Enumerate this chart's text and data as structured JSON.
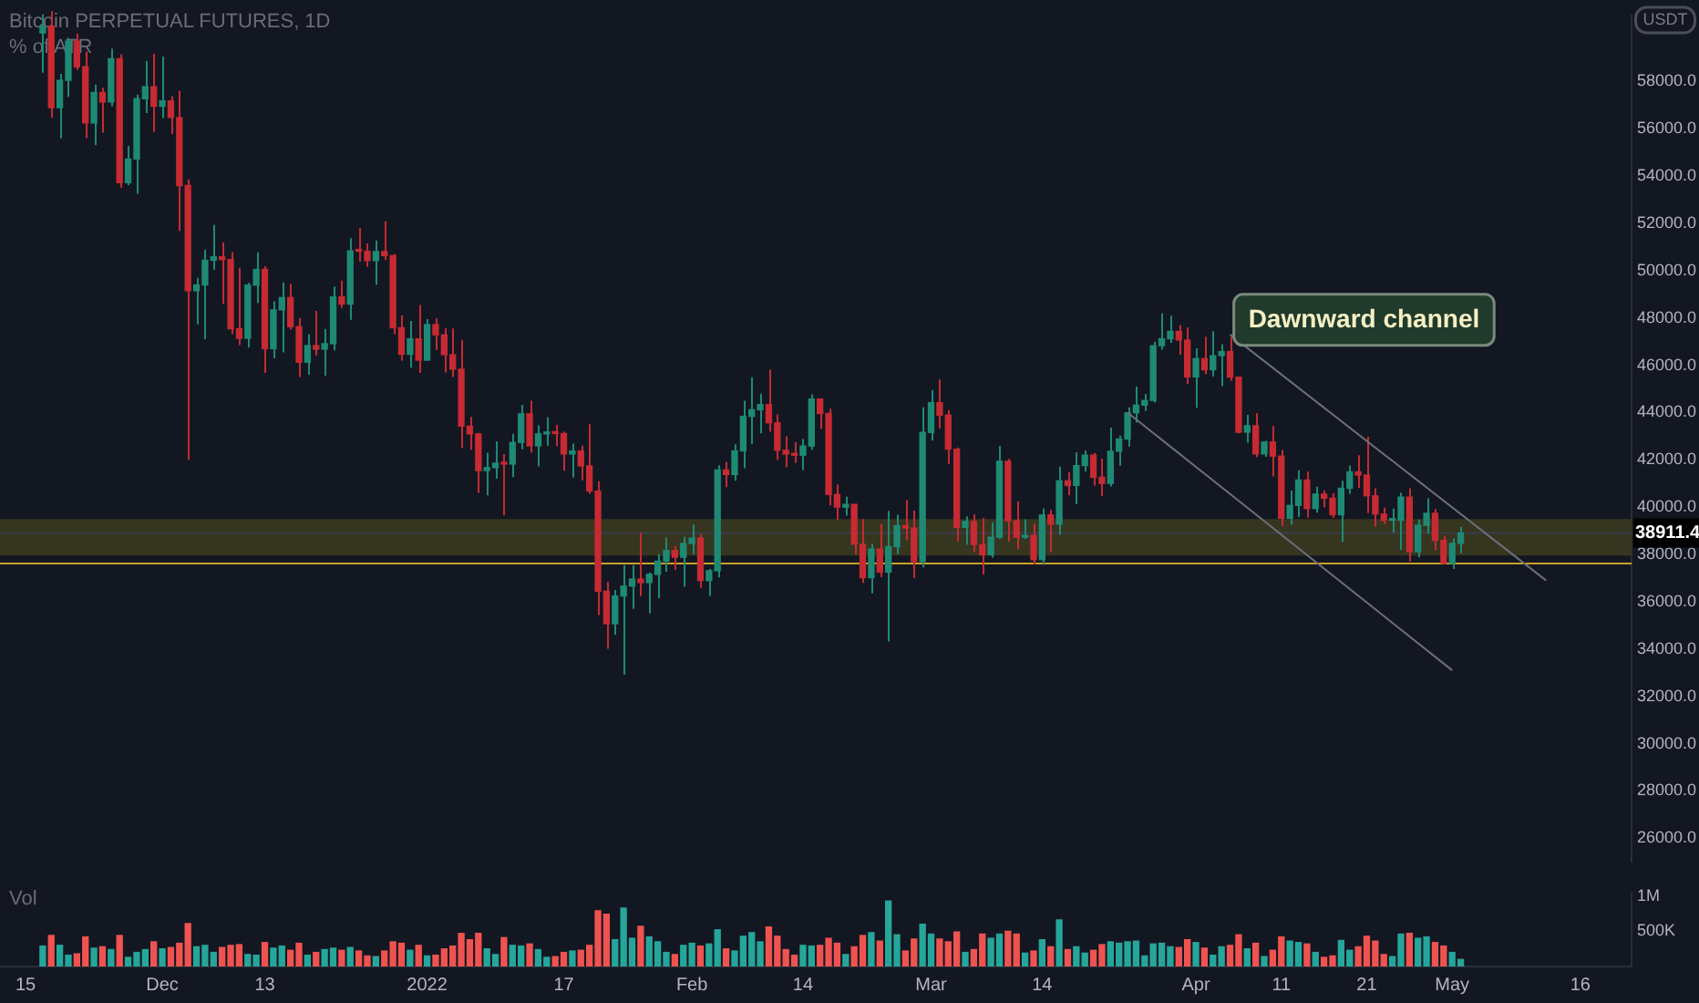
{
  "chart_data": [
    {
      "type": "candlestick",
      "title": "Bitcoin PERPETUAL FUTURES, 1D",
      "subtitle": "% of ATR",
      "ylabel": "USDT",
      "xlim": [
        "2021-11-12",
        "2022-05-22"
      ],
      "ylim": [
        25000,
        60800
      ],
      "yticks": [
        {
          "value": 26000,
          "label": "26000.0"
        },
        {
          "value": 28000,
          "label": "28000.0"
        },
        {
          "value": 30000,
          "label": "30000.0"
        },
        {
          "value": 32000,
          "label": "32000.0"
        },
        {
          "value": 34000,
          "label": "34000.0"
        },
        {
          "value": 36000,
          "label": "36000.0"
        },
        {
          "value": 38000,
          "label": "38000.0"
        },
        {
          "value": 40000,
          "label": "40000.0"
        },
        {
          "value": 42000,
          "label": "42000.0"
        },
        {
          "value": 44000,
          "label": "44000.0"
        },
        {
          "value": 46000,
          "label": "46000.0"
        },
        {
          "value": 48000,
          "label": "48000.0"
        },
        {
          "value": 50000,
          "label": "50000.0"
        },
        {
          "value": 52000,
          "label": "52000.0"
        },
        {
          "value": 54000,
          "label": "54000.0"
        },
        {
          "value": 56000,
          "label": "56000.0"
        },
        {
          "value": 58000,
          "label": "58000.0"
        }
      ],
      "tick_labels": "y",
      "grid": false,
      "legend": false,
      "bands": [
        {
          "axis": "y",
          "from": 37950,
          "to": 39500,
          "color": "#36351f"
        }
      ],
      "ref_lines": [
        {
          "axis": "y",
          "value": 38911.4,
          "label": "38911.4",
          "color": "#3a3e4a"
        },
        {
          "axis": "y",
          "value": 37620,
          "color": "#c9a227"
        }
      ],
      "annotations": [
        "Dawnward channel"
      ],
      "series": [
        {
          "color": "#1e8a74",
          "x": [
            "2021-11-17",
            "2021-11-19",
            "2021-11-20",
            "2021-11-23",
            "2021-11-25",
            "2021-11-27",
            "2021-11-28",
            "2021-11-29",
            "2021-12-01",
            "2021-12-05",
            "2021-12-06",
            "2021-12-07",
            "2021-12-11",
            "2021-12-12",
            "2021-12-14",
            "2021-12-15",
            "2021-12-18",
            "2021-12-20",
            "2021-12-21",
            "2021-12-23",
            "2021-12-26",
            "2021-12-30",
            "2022-01-01",
            "2022-01-08",
            "2022-01-09",
            "2022-01-11",
            "2022-01-12",
            "2022-01-14",
            "2022-01-15",
            "2022-01-18",
            "2022-01-23",
            "2022-01-24",
            "2022-01-25",
            "2022-01-27",
            "2022-01-28",
            "2022-01-29",
            "2022-01-31",
            "2022-02-01",
            "2022-02-03",
            "2022-02-04",
            "2022-02-06",
            "2022-02-07",
            "2022-02-08",
            "2022-02-09",
            "2022-02-14",
            "2022-02-15",
            "2022-02-19",
            "2022-02-22",
            "2022-02-24",
            "2022-02-25",
            "2022-02-28",
            "2022-03-01",
            "2022-03-05",
            "2022-03-08",
            "2022-03-09",
            "2022-03-12",
            "2022-03-14",
            "2022-03-16",
            "2022-03-18",
            "2022-03-19",
            "2022-03-22",
            "2022-03-23",
            "2022-03-24",
            "2022-03-25",
            "2022-03-26",
            "2022-03-27",
            "2022-03-28",
            "2022-03-29",
            "2022-04-01",
            "2022-04-03",
            "2022-04-04",
            "2022-04-07",
            "2022-04-09",
            "2022-04-12",
            "2022-04-13",
            "2022-04-15",
            "2022-04-18",
            "2022-04-19",
            "2022-04-24",
            "2022-04-25",
            "2022-04-27",
            "2022-04-28",
            "2022-05-01",
            "2022-05-02"
          ],
          "ohlc": [
            [
              60058,
              60840,
              58373,
              60345
            ],
            [
              56892,
              58320,
              55600,
              58052
            ],
            [
              58052,
              59845,
              57353,
              59707
            ],
            [
              56247,
              57875,
              55317,
              57541
            ],
            [
              57138,
              59398,
              56956,
              58960
            ],
            [
              53726,
              55280,
              53610,
              54721
            ],
            [
              54721,
              57445,
              53256,
              57274
            ],
            [
              57274,
              58865,
              56666,
              57776
            ],
            [
              56950,
              59053,
              56458,
              57184
            ],
            [
              49152,
              49699,
              47727,
              49396
            ],
            [
              49396,
              50891,
              47100,
              50441
            ],
            [
              50441,
              51936,
              50039,
              50588
            ],
            [
              47140,
              49485,
              46751,
              49389
            ],
            [
              49389,
              50777,
              48638,
              50053
            ],
            [
              46702,
              48700,
              46290,
              48343
            ],
            [
              48343,
              49500,
              46547,
              48864
            ],
            [
              46131,
              47313,
              45598,
              46834
            ],
            [
              46681,
              47537,
              45558,
              46914
            ],
            [
              46914,
              49328,
              46630,
              48889
            ],
            [
              48588,
              51375,
              47920,
              50838
            ],
            [
              50429,
              51280,
              49412,
              50809
            ],
            [
              46464,
              47879,
              45900,
              47120
            ],
            [
              46216,
              47954,
              46208,
              47722
            ],
            [
              41546,
              42300,
              40501,
              41672
            ],
            [
              41672,
              42786,
              41200,
              41860
            ],
            [
              41822,
              43100,
              41268,
              42735
            ],
            [
              42735,
              44322,
              42450,
              43949
            ],
            [
              42591,
              43459,
              41725,
              43099
            ],
            [
              43099,
              43800,
              42600,
              43177
            ],
            [
              42250,
              42691,
              41250,
              42375
            ],
            [
              35071,
              36499,
              34601,
              36244
            ],
            [
              36244,
              37550,
              32917,
              36660
            ],
            [
              36660,
              37545,
              35701,
              36958
            ],
            [
              36810,
              37234,
              35507,
              37160
            ],
            [
              37160,
              38000,
              36155,
              37716
            ],
            [
              37716,
              38720,
              37268,
              38166
            ],
            [
              37881,
              38744,
              36633,
              38466
            ],
            [
              38466,
              39265,
              38000,
              38694
            ],
            [
              36896,
              37387,
              36250,
              37311
            ],
            [
              37311,
              41772,
              37026,
              41574
            ],
            [
              41382,
              42656,
              41116,
              42380
            ],
            [
              42380,
              44500,
              41645,
              43840
            ],
            [
              43840,
              45492,
              42666,
              44118
            ],
            [
              44118,
              44799,
              43117,
              44338
            ],
            [
              42197,
              42876,
              41570,
              42586
            ],
            [
              42586,
              44775,
              42427,
              44575
            ],
            [
              40000,
              40444,
              39639,
              40118
            ],
            [
              37017,
              38450,
              36350,
              38231
            ],
            [
              37250,
              39843,
              34322,
              38328
            ],
            [
              38328,
              39684,
              38014,
              39219
            ],
            [
              37700,
              44225,
              37450,
              43160
            ],
            [
              43160,
              44949,
              42809,
              44421
            ],
            [
              39148,
              39613,
              38407,
              39397
            ],
            [
              37988,
              39362,
              37867,
              38730
            ],
            [
              38730,
              42594,
              38656,
              41941
            ],
            [
              38729,
              39486,
              38660,
              38807
            ],
            [
              37777,
              39947,
              37555,
              39671
            ],
            [
              39280,
              41718,
              38828,
              41114
            ],
            [
              40917,
              42325,
              40135,
              41757
            ],
            [
              41757,
              42400,
              41499,
              42201
            ],
            [
              41002,
              43361,
              40875,
              42364
            ],
            [
              42364,
              43025,
              41751,
              42882
            ],
            [
              42882,
              44220,
              42560,
              43991
            ],
            [
              43991,
              45094,
              43579,
              44313
            ],
            [
              44313,
              44792,
              44071,
              44511
            ],
            [
              44511,
              46999,
              44421,
              46827
            ],
            [
              46827,
              48190,
              46663,
              47122
            ],
            [
              47122,
              48096,
              46950,
              47434
            ],
            [
              45510,
              46720,
              44200,
              46283
            ],
            [
              45811,
              47444,
              45530,
              46407
            ],
            [
              46407,
              46890,
              45118,
              46580
            ],
            [
              43170,
              43900,
              42727,
              43444
            ],
            [
              42252,
              42800,
              42125,
              42753
            ],
            [
              39530,
              40699,
              39254,
              40074
            ],
            [
              40074,
              41561,
              39588,
              41147
            ],
            [
              39942,
              40870,
              39766,
              40552
            ],
            [
              39678,
              41116,
              38536,
              40801
            ],
            [
              40801,
              41760,
              40571,
              41493
            ],
            [
              39441,
              39940,
              38929,
              39450
            ],
            [
              39450,
              40616,
              38200,
              40426
            ],
            [
              38112,
              39474,
              37881,
              39235
            ],
            [
              39235,
              40372,
              38881,
              39742
            ],
            [
              37630,
              38675,
              37386,
              38468
            ],
            [
              38468,
              39167,
              38052,
              38911.4
            ]
          ]
        },
        {
          "color": "#c62a32",
          "x": [
            "2021-11-18",
            "2021-11-21",
            "2021-11-22",
            "2021-11-24",
            "2021-11-26",
            "2021-11-30",
            "2021-12-02",
            "2021-12-03",
            "2021-12-04",
            "2021-12-08",
            "2021-12-09",
            "2021-12-10",
            "2021-12-13",
            "2021-12-16",
            "2021-12-17",
            "2021-12-19",
            "2021-12-22",
            "2021-12-24",
            "2021-12-25",
            "2021-12-27",
            "2021-12-28",
            "2021-12-29",
            "2021-12-31",
            "2022-01-02",
            "2022-01-03",
            "2022-01-04",
            "2022-01-05",
            "2022-01-06",
            "2022-01-07",
            "2022-01-10",
            "2022-01-13",
            "2022-01-16",
            "2022-01-17",
            "2022-01-19",
            "2022-01-20",
            "2022-01-21",
            "2022-01-22",
            "2022-01-26",
            "2022-01-30",
            "2022-02-02",
            "2022-02-05",
            "2022-02-10",
            "2022-02-11",
            "2022-02-12",
            "2022-02-13",
            "2022-02-16",
            "2022-02-17",
            "2022-02-18",
            "2022-02-20",
            "2022-02-21",
            "2022-02-23",
            "2022-02-26",
            "2022-02-27",
            "2022-03-02",
            "2022-03-03",
            "2022-03-04",
            "2022-03-06",
            "2022-03-07",
            "2022-03-10",
            "2022-03-11",
            "2022-03-13",
            "2022-03-15",
            "2022-03-17",
            "2022-03-20",
            "2022-03-21",
            "2022-03-30",
            "2022-03-31",
            "2022-04-02",
            "2022-04-05",
            "2022-04-06",
            "2022-04-08",
            "2022-04-10",
            "2022-04-11",
            "2022-04-14",
            "2022-04-16",
            "2022-04-17",
            "2022-04-20",
            "2022-04-21",
            "2022-04-22",
            "2022-04-23",
            "2022-04-26",
            "2022-04-29",
            "2022-04-30"
          ],
          "ohlc": [
            [
              60345,
              60976,
              56474,
              56892
            ],
            [
              59707,
              60029,
              58486,
              58622
            ],
            [
              58622,
              59266,
              55610,
              56247
            ],
            [
              57541,
              57735,
              55837,
              57138
            ],
            [
              58960,
              59150,
              53500,
              53726
            ],
            [
              57776,
              59176,
              55875,
              56950
            ],
            [
              57184,
              57375,
              55777,
              56480
            ],
            [
              56480,
              57600,
              51680,
              53601
            ],
            [
              53601,
              53859,
              42000,
              49152
            ],
            [
              50588,
              51200,
              48600,
              50471
            ],
            [
              50471,
              50797,
              47320,
              47545
            ],
            [
              47545,
              50125,
              46852,
              47140
            ],
            [
              50053,
              50189,
              45672,
              46702
            ],
            [
              48864,
              49436,
              47511,
              47632
            ],
            [
              47632,
              48004,
              45500,
              46131
            ],
            [
              46834,
              48300,
              46406,
              46681
            ],
            [
              48889,
              49576,
              48421,
              48588
            ],
            [
              50838,
              51810,
              50384,
              50821
            ],
            [
              50821,
              51156,
              50171,
              50429
            ],
            [
              50809,
              52088,
              50449,
              50640
            ],
            [
              50640,
              50704,
              47313,
              47588
            ],
            [
              47588,
              48119,
              46201,
              46464
            ],
            [
              47120,
              48548,
              45678,
              46216
            ],
            [
              47722,
              47990,
              46654,
              47286
            ],
            [
              47286,
              47570,
              45696,
              46446
            ],
            [
              46446,
              47557,
              45500,
              45833
            ],
            [
              45833,
              47070,
              42500,
              43425
            ],
            [
              43425,
              43816,
              42430,
              43098
            ],
            [
              43098,
              43145,
              40610,
              41546
            ],
            [
              41860,
              42248,
              39650,
              41822
            ],
            [
              43949,
              44500,
              42311,
              42591
            ],
            [
              43177,
              43476,
              42581,
              43114
            ],
            [
              43114,
              43200,
              41540,
              42250
            ],
            [
              42375,
              42600,
              41138,
              41744
            ],
            [
              41744,
              43505,
              40553,
              40680
            ],
            [
              40680,
              41100,
              35440,
              36445
            ],
            [
              36445,
              36835,
              34008,
              35071
            ],
            [
              36958,
              38919,
              36234,
              36810
            ],
            [
              38166,
              38359,
              37351,
              37881
            ],
            [
              38694,
              38855,
              36586,
              36896
            ],
            [
              41574,
              41913,
              40843,
              41382
            ],
            [
              44338,
              45821,
              43187,
              43565
            ],
            [
              43565,
              43920,
              42000,
              42407
            ],
            [
              42407,
              43000,
              41688,
              42244
            ],
            [
              42244,
              42760,
              41870,
              42197
            ],
            [
              44575,
              44585,
              43310,
              43961
            ],
            [
              43961,
              44164,
              40073,
              40538
            ],
            [
              40538,
              40959,
              39450,
              40000
            ],
            [
              40118,
              40132,
              38000,
              38431
            ],
            [
              38431,
              39500,
              36800,
              37017
            ],
            [
              38231,
              39280,
              37036,
              37250
            ],
            [
              39219,
              40300,
              38600,
              39116
            ],
            [
              39116,
              39855,
              37000,
              37700
            ],
            [
              44421,
              45400,
              43334,
              43892
            ],
            [
              43892,
              44101,
              41832,
              42454
            ],
            [
              42454,
              42527,
              38550,
              39148
            ],
            [
              39397,
              39693,
              38088,
              38420
            ],
            [
              38420,
              39547,
              37155,
              37988
            ],
            [
              41941,
              42039,
              38539,
              39422
            ],
            [
              39422,
              40236,
              38223,
              38729
            ],
            [
              38807,
              39310,
              37578,
              37777
            ],
            [
              39671,
              39887,
              38098,
              39280
            ],
            [
              41114,
              41478,
              40500,
              40917
            ],
            [
              42201,
              42296,
              40911,
              41262
            ],
            [
              41262,
              42047,
              40467,
              41002
            ],
            [
              47434,
              47700,
              46445,
              47067
            ],
            [
              47067,
              47600,
              45200,
              45510
            ],
            [
              46283,
              47213,
              45620,
              45811
            ],
            [
              46580,
              47200,
              45353,
              45497
            ],
            [
              45497,
              45507,
              43121,
              43170
            ],
            [
              43444,
              43970,
              42107,
              42252
            ],
            [
              42753,
              43433,
              41300,
              42158
            ],
            [
              42158,
              42414,
              39200,
              39530
            ],
            [
              41147,
              41500,
              39551,
              39942
            ],
            [
              40552,
              40709,
              39991,
              40378
            ],
            [
              40378,
              40595,
              39546,
              39678
            ],
            [
              41493,
              42199,
              40820,
              41358
            ],
            [
              41358,
              42976,
              39751,
              40480
            ],
            [
              40480,
              40795,
              39177,
              39709
            ],
            [
              39709,
              39980,
              39285,
              39441
            ],
            [
              40426,
              40797,
              37702,
              38112
            ],
            [
              39742,
              39925,
              38175,
              38596
            ],
            [
              38596,
              38795,
              37578,
              37630
            ]
          ]
        },
        {
          "type": "line",
          "color": "#6b6f7a",
          "x": [
            "2022-04-05",
            "2022-05-12"
          ],
          "values": [
            47300,
            36900
          ]
        },
        {
          "type": "line",
          "color": "#6b6f7a",
          "x": [
            "2022-03-24",
            "2022-05-01"
          ],
          "values": [
            44000,
            33100
          ]
        }
      ]
    },
    {
      "type": "bar",
      "title": "Vol",
      "xlim": [
        "2021-11-12",
        "2022-05-22"
      ],
      "xticks": [
        {
          "value": "2021-11-15",
          "label": "15"
        },
        {
          "value": "2021-12-01",
          "label": "Dec"
        },
        {
          "value": "2021-12-13",
          "label": "13"
        },
        {
          "value": "2022-01-01",
          "label": "2022"
        },
        {
          "value": "2022-01-17",
          "label": "17"
        },
        {
          "value": "2022-02-01",
          "label": "Feb"
        },
        {
          "value": "2022-02-14",
          "label": "14"
        },
        {
          "value": "2022-03-01",
          "label": "Mar"
        },
        {
          "value": "2022-03-14",
          "label": "14"
        },
        {
          "value": "2022-04-01",
          "label": "Apr"
        },
        {
          "value": "2022-04-11",
          "label": "11"
        },
        {
          "value": "2022-04-21",
          "label": "21"
        },
        {
          "value": "2022-05-01",
          "label": "May"
        },
        {
          "value": "2022-05-16",
          "label": "16"
        }
      ],
      "ylim": [
        0,
        1050000
      ],
      "yticks": [
        {
          "value": 500000,
          "label": "500K"
        },
        {
          "value": 1000000,
          "label": "1M"
        }
      ],
      "grid": false,
      "legend": false,
      "series": [
        {
          "color": "#26a69a",
          "x": [
            "2021-11-17",
            "2021-11-19",
            "2021-11-20",
            "2021-11-23",
            "2021-11-25",
            "2021-11-27",
            "2021-11-28",
            "2021-11-29",
            "2021-12-01",
            "2021-12-05",
            "2021-12-06",
            "2021-12-07",
            "2021-12-11",
            "2021-12-12",
            "2021-12-14",
            "2021-12-15",
            "2021-12-18",
            "2021-12-20",
            "2021-12-21",
            "2021-12-23",
            "2021-12-26",
            "2021-12-30",
            "2022-01-01",
            "2022-01-08",
            "2022-01-09",
            "2022-01-11",
            "2022-01-12",
            "2022-01-14",
            "2022-01-15",
            "2022-01-18",
            "2022-01-23",
            "2022-01-24",
            "2022-01-25",
            "2022-01-27",
            "2022-01-28",
            "2022-01-29",
            "2022-01-31",
            "2022-02-01",
            "2022-02-03",
            "2022-02-04",
            "2022-02-06",
            "2022-02-07",
            "2022-02-08",
            "2022-02-09",
            "2022-02-14",
            "2022-02-15",
            "2022-02-19",
            "2022-02-22",
            "2022-02-24",
            "2022-02-25",
            "2022-02-28",
            "2022-03-01",
            "2022-03-05",
            "2022-03-08",
            "2022-03-09",
            "2022-03-12",
            "2022-03-14",
            "2022-03-16",
            "2022-03-18",
            "2022-03-19",
            "2022-03-22",
            "2022-03-23",
            "2022-03-24",
            "2022-03-25",
            "2022-03-26",
            "2022-03-27",
            "2022-03-28",
            "2022-03-29",
            "2022-04-01",
            "2022-04-03",
            "2022-04-04",
            "2022-04-07",
            "2022-04-09",
            "2022-04-12",
            "2022-04-13",
            "2022-04-15",
            "2022-04-18",
            "2022-04-19",
            "2022-04-24",
            "2022-04-25",
            "2022-04-27",
            "2022-04-28",
            "2022-05-01",
            "2022-05-02"
          ],
          "values": [
            290000,
            300000,
            160000,
            260000,
            240000,
            130000,
            200000,
            240000,
            250000,
            280000,
            300000,
            200000,
            170000,
            160000,
            260000,
            290000,
            160000,
            240000,
            260000,
            270000,
            140000,
            230000,
            150000,
            250000,
            170000,
            300000,
            290000,
            240000,
            130000,
            220000,
            380000,
            830000,
            400000,
            420000,
            350000,
            200000,
            300000,
            330000,
            320000,
            520000,
            220000,
            430000,
            480000,
            350000,
            300000,
            290000,
            170000,
            480000,
            930000,
            450000,
            600000,
            460000,
            200000,
            400000,
            460000,
            190000,
            380000,
            660000,
            280000,
            190000,
            350000,
            330000,
            350000,
            360000,
            150000,
            320000,
            330000,
            280000,
            340000,
            160000,
            280000,
            250000,
            140000,
            360000,
            340000,
            200000,
            370000,
            230000,
            140000,
            460000,
            400000,
            420000,
            200000,
            100000
          ]
        },
        {
          "color": "#ef5350",
          "x": [
            "2021-11-18",
            "2021-11-21",
            "2021-11-22",
            "2021-11-24",
            "2021-11-26",
            "2021-11-30",
            "2021-12-02",
            "2021-12-03",
            "2021-12-04",
            "2021-12-08",
            "2021-12-09",
            "2021-12-10",
            "2021-12-13",
            "2021-12-16",
            "2021-12-17",
            "2021-12-19",
            "2021-12-22",
            "2021-12-24",
            "2021-12-25",
            "2021-12-27",
            "2021-12-28",
            "2021-12-29",
            "2021-12-31",
            "2022-01-02",
            "2022-01-03",
            "2022-01-04",
            "2022-01-05",
            "2022-01-06",
            "2022-01-07",
            "2022-01-10",
            "2022-01-13",
            "2022-01-16",
            "2022-01-17",
            "2022-01-19",
            "2022-01-20",
            "2022-01-21",
            "2022-01-22",
            "2022-01-26",
            "2022-01-30",
            "2022-02-02",
            "2022-02-05",
            "2022-02-10",
            "2022-02-11",
            "2022-02-12",
            "2022-02-13",
            "2022-02-16",
            "2022-02-17",
            "2022-02-18",
            "2022-02-20",
            "2022-02-21",
            "2022-02-23",
            "2022-02-26",
            "2022-02-27",
            "2022-03-02",
            "2022-03-03",
            "2022-03-04",
            "2022-03-06",
            "2022-03-07",
            "2022-03-10",
            "2022-03-11",
            "2022-03-13",
            "2022-03-15",
            "2022-03-17",
            "2022-03-20",
            "2022-03-21",
            "2022-03-30",
            "2022-03-31",
            "2022-04-02",
            "2022-04-05",
            "2022-04-06",
            "2022-04-08",
            "2022-04-10",
            "2022-04-11",
            "2022-04-14",
            "2022-04-16",
            "2022-04-17",
            "2022-04-20",
            "2022-04-21",
            "2022-04-22",
            "2022-04-23",
            "2022-04-26",
            "2022-04-29",
            "2022-04-30"
          ],
          "values": [
            440000,
            180000,
            420000,
            280000,
            440000,
            350000,
            270000,
            330000,
            610000,
            270000,
            300000,
            310000,
            340000,
            230000,
            330000,
            200000,
            230000,
            220000,
            150000,
            220000,
            350000,
            330000,
            300000,
            160000,
            250000,
            290000,
            470000,
            380000,
            470000,
            410000,
            320000,
            140000,
            200000,
            230000,
            300000,
            790000,
            740000,
            570000,
            170000,
            290000,
            250000,
            560000,
            430000,
            240000,
            160000,
            300000,
            400000,
            330000,
            280000,
            440000,
            360000,
            220000,
            390000,
            390000,
            350000,
            490000,
            240000,
            460000,
            500000,
            460000,
            220000,
            280000,
            240000,
            230000,
            310000,
            270000,
            380000,
            260000,
            300000,
            450000,
            330000,
            230000,
            420000,
            320000,
            130000,
            150000,
            280000,
            430000,
            360000,
            170000,
            470000,
            340000,
            290000
          ]
        }
      ]
    }
  ]
}
